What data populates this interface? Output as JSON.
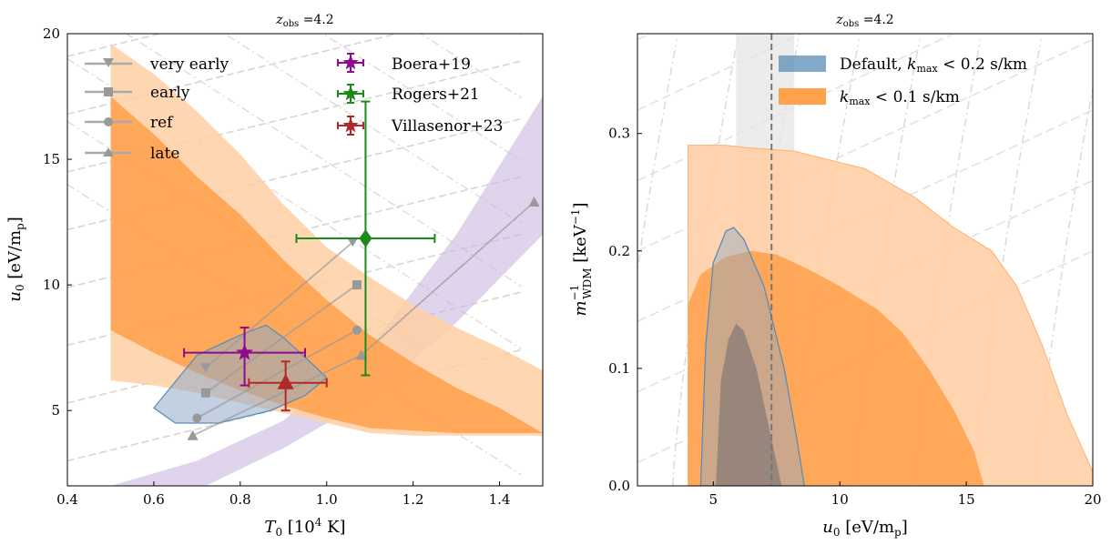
{
  "figure": {
    "panels": [
      {
        "title": "z_obs =4.2",
        "xlabel": "T0 [10^4 K]",
        "ylabel": "u0 [eV/mp]",
        "xlim": [
          0.4,
          1.5
        ],
        "ylim": [
          2,
          20
        ],
        "xticks": [
          0.4,
          0.6,
          0.8,
          1.0,
          1.2,
          1.4
        ],
        "xtick_labels": [
          "0.4",
          "0.6",
          "0.8",
          "1.0",
          "1.2",
          "1.4"
        ],
        "yticks": [
          5,
          10,
          15,
          20
        ],
        "ytick_labels": [
          "5",
          "10",
          "15",
          "20"
        ]
      },
      {
        "title": "z_obs =4.2",
        "xlabel": "u0 [eV/mp]",
        "ylabel": "m_WDM^-1 [keV^-1]",
        "xlim": [
          2,
          20
        ],
        "ylim": [
          0,
          0.385
        ],
        "xticks": [
          5,
          10,
          15,
          20
        ],
        "xtick_labels": [
          "5",
          "10",
          "15",
          "20"
        ],
        "yticks": [
          0.0,
          0.1,
          0.2,
          0.3
        ],
        "ytick_labels": [
          "0.0",
          "0.1",
          "0.2",
          "0.3"
        ]
      }
    ]
  },
  "legend_left_models": [
    "very early",
    "early",
    "ref",
    "late"
  ],
  "legend_left_obs": [
    "Boera+19",
    "Rogers+21",
    "Villasenor+23"
  ],
  "legend_right": [
    "Default, k_max < 0.2 s/km",
    "k_max < 0.1 s/km"
  ],
  "chart_data": [
    {
      "type": "scatter",
      "title": "z_obs =4.2",
      "xlabel": "T0 [10^4 K]",
      "ylabel": "u0 [eV/mp]",
      "xlim": [
        0.4,
        1.5
      ],
      "ylim": [
        2,
        20
      ],
      "grid": false,
      "legend_placement": "top",
      "colors": {
        "default": "#5b8db8",
        "k01": "#ffa04a",
        "prior": "#c9b8e0",
        "boera": "#8e0b8e",
        "rogers": "#1a8a1a",
        "villasenor": "#b02828"
      },
      "series": [
        {
          "name": "very early",
          "marker": "triangle-down",
          "x": [
            0.72,
            1.06
          ],
          "y": [
            6.7,
            11.7
          ]
        },
        {
          "name": "early",
          "marker": "square",
          "x": [
            0.72,
            1.07
          ],
          "y": [
            5.7,
            10.0
          ]
        },
        {
          "name": "ref",
          "marker": "circle",
          "x": [
            0.7,
            1.07
          ],
          "y": [
            4.7,
            8.2
          ]
        },
        {
          "name": "late",
          "marker": "triangle-up",
          "x": [
            0.69,
            1.08,
            1.48
          ],
          "y": [
            4.0,
            7.2,
            13.3
          ]
        }
      ],
      "observations": [
        {
          "name": "Boera+19",
          "marker": "star",
          "x": 0.81,
          "y": 7.3,
          "xerr": [
            0.14,
            0.14
          ],
          "yerr": [
            1.3,
            1.0
          ]
        },
        {
          "name": "Rogers+21",
          "marker": "diamond",
          "x": 1.09,
          "y": 11.85,
          "xerr": [
            0.16,
            0.16
          ],
          "yerr": [
            5.45,
            5.45
          ]
        },
        {
          "name": "Villasenor+23",
          "marker": "triangle-up",
          "x": 0.905,
          "y": 6.1,
          "xerr": [
            0.085,
            0.095
          ],
          "yerr": [
            1.1,
            0.85
          ]
        }
      ],
      "contours": {
        "k_max_0.1_outer": [
          [
            0.5,
            19.6
          ],
          [
            0.6,
            18.4
          ],
          [
            0.7,
            16.9
          ],
          [
            0.8,
            15.2
          ],
          [
            0.9,
            13.2
          ],
          [
            1.0,
            11.5
          ],
          [
            1.1,
            10.3
          ],
          [
            1.2,
            9.2
          ],
          [
            1.3,
            8.3
          ],
          [
            1.4,
            7.5
          ],
          [
            1.5,
            6.6
          ],
          [
            1.5,
            4.0
          ],
          [
            1.4,
            4.0
          ],
          [
            1.3,
            4.0
          ],
          [
            1.2,
            4.0
          ],
          [
            1.1,
            4.1
          ],
          [
            1.0,
            4.5
          ],
          [
            0.9,
            4.9
          ],
          [
            0.8,
            5.3
          ],
          [
            0.7,
            5.7
          ],
          [
            0.6,
            6.0
          ],
          [
            0.5,
            6.2
          ]
        ],
        "k_max_0.1_inner": [
          [
            0.5,
            17.5
          ],
          [
            0.6,
            16.0
          ],
          [
            0.7,
            14.3
          ],
          [
            0.8,
            12.8
          ],
          [
            0.9,
            11.0
          ],
          [
            1.0,
            9.4
          ],
          [
            1.1,
            8.0
          ],
          [
            1.2,
            6.9
          ],
          [
            1.3,
            5.9
          ],
          [
            1.4,
            5.1
          ],
          [
            1.5,
            4.1
          ],
          [
            1.3,
            4.1
          ],
          [
            1.1,
            4.3
          ],
          [
            1.0,
            4.7
          ],
          [
            0.9,
            5.2
          ],
          [
            0.8,
            5.8
          ],
          [
            0.7,
            6.5
          ],
          [
            0.6,
            7.3
          ],
          [
            0.5,
            8.2
          ]
        ],
        "default_2sigma": [
          [
            0.6,
            5.1
          ],
          [
            0.7,
            7.2
          ],
          [
            0.8,
            8.0
          ],
          [
            0.86,
            8.4
          ],
          [
            0.9,
            7.9
          ],
          [
            0.97,
            6.8
          ],
          [
            1.0,
            6.3
          ],
          [
            0.95,
            5.6
          ],
          [
            0.87,
            5.0
          ],
          [
            0.75,
            4.5
          ],
          [
            0.65,
            4.5
          ],
          [
            0.6,
            5.1
          ]
        ],
        "prior_band": [
          [
            0.5,
            2.0
          ],
          [
            0.7,
            3.0
          ],
          [
            0.9,
            4.6
          ],
          [
            1.1,
            7.5
          ],
          [
            1.3,
            12.0
          ],
          [
            1.5,
            17.5
          ],
          [
            1.5,
            12.0
          ],
          [
            1.3,
            8.5
          ],
          [
            1.1,
            5.5
          ],
          [
            0.9,
            3.5
          ],
          [
            0.72,
            2.0
          ]
        ]
      }
    },
    {
      "type": "area",
      "title": "z_obs =4.2",
      "xlabel": "u0 [eV/mp]",
      "ylabel": "m_WDM^-1 [keV^-1]",
      "xlim": [
        2,
        20
      ],
      "ylim": [
        0,
        0.385
      ],
      "grid": false,
      "legend_placement": "top-right",
      "vertical_line_x": 7.3,
      "vertical_band_x": [
        5.9,
        8.2
      ],
      "series": [
        {
          "name": "k_max < 0.1 s/km",
          "region": "2sigma",
          "x": [
            4.0,
            4.0,
            5.5,
            6.3,
            8.2,
            11.0,
            13.0,
            14.5,
            16.0,
            17.0,
            18.0,
            19.0,
            20.0,
            20.0
          ],
          "y": [
            0.0,
            0.29,
            0.29,
            0.288,
            0.285,
            0.27,
            0.245,
            0.22,
            0.2,
            0.17,
            0.12,
            0.06,
            0.012,
            0.0
          ]
        },
        {
          "name": "k_max < 0.1 s/km",
          "region": "1sigma",
          "x": [
            4.0,
            4.0,
            4.5,
            5.5,
            6.5,
            7.5,
            8.7,
            10.0,
            11.5,
            12.5,
            13.5,
            14.5,
            15.3,
            15.7
          ],
          "y": [
            0.0,
            0.155,
            0.18,
            0.195,
            0.2,
            0.197,
            0.185,
            0.17,
            0.15,
            0.13,
            0.1,
            0.065,
            0.03,
            0.0
          ]
        },
        {
          "name": "Default, k_max < 0.2 s/km",
          "region": "2sigma",
          "x": [
            4.5,
            4.7,
            5.0,
            5.5,
            5.8,
            6.2,
            7.0,
            7.8,
            8.3,
            8.6
          ],
          "y": [
            0.0,
            0.12,
            0.19,
            0.217,
            0.22,
            0.21,
            0.17,
            0.1,
            0.04,
            0.0
          ]
        },
        {
          "name": "Default, k_max < 0.2 s/km",
          "region": "1sigma",
          "x": [
            5.1,
            5.3,
            5.6,
            5.9,
            6.2,
            6.7,
            7.3,
            7.7
          ],
          "y": [
            0.0,
            0.09,
            0.125,
            0.138,
            0.132,
            0.1,
            0.04,
            0.0
          ]
        }
      ]
    }
  ]
}
